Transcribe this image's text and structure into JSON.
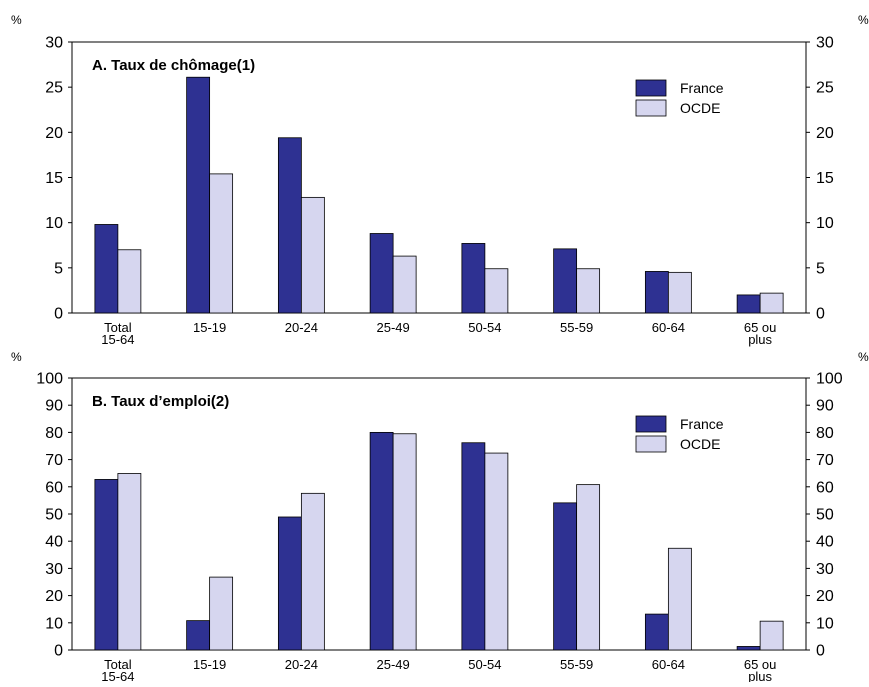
{
  "colors": {
    "france": "#2e3192",
    "ocde": "#d6d6ef",
    "stroke": "#000000"
  },
  "chart_data": [
    {
      "type": "bar",
      "title": "A. Taux de chômage(1)",
      "ylabel_left": "%",
      "ylabel_right": "%",
      "ylim": [
        0,
        30
      ],
      "yticks": [
        "0",
        "5",
        "10",
        "15",
        "20",
        "25",
        "30"
      ],
      "categories": [
        [
          "Total",
          "15-64"
        ],
        [
          "15-19"
        ],
        [
          "20-24"
        ],
        [
          "25-49"
        ],
        [
          "50-54"
        ],
        [
          "55-59"
        ],
        [
          "60-64"
        ],
        [
          "65 ou",
          "plus"
        ]
      ],
      "legend_position": "top-right",
      "series": [
        {
          "name": "France",
          "values": [
            9.8,
            26.1,
            19.4,
            8.8,
            7.7,
            7.1,
            4.6,
            2.0
          ]
        },
        {
          "name": "OCDE",
          "values": [
            7.0,
            15.4,
            12.8,
            6.3,
            4.9,
            4.9,
            4.5,
            2.2
          ]
        }
      ]
    },
    {
      "type": "bar",
      "title": "B. Taux d’emploi(2)",
      "ylabel_left": "%",
      "ylabel_right": "%",
      "ylim": [
        0,
        100
      ],
      "yticks": [
        "0",
        "10",
        "20",
        "30",
        "40",
        "50",
        "60",
        "70",
        "80",
        "90",
        "100"
      ],
      "categories": [
        [
          "Total",
          "15-64"
        ],
        [
          "15-19"
        ],
        [
          "20-24"
        ],
        [
          "25-49"
        ],
        [
          "50-54"
        ],
        [
          "55-59"
        ],
        [
          "60-64"
        ],
        [
          "65 ou",
          "plus"
        ]
      ],
      "legend_position": "top-right",
      "series": [
        {
          "name": "France",
          "values": [
            62.7,
            10.8,
            48.9,
            80.0,
            76.2,
            54.1,
            13.2,
            1.3
          ]
        },
        {
          "name": "OCDE",
          "values": [
            64.9,
            26.8,
            57.6,
            79.5,
            72.4,
            60.8,
            37.4,
            10.6
          ]
        }
      ]
    }
  ]
}
